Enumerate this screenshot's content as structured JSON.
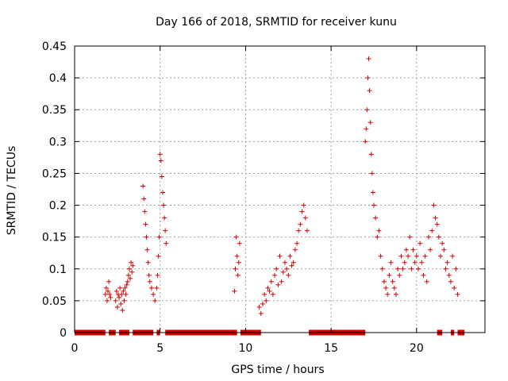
{
  "chart_data": {
    "type": "scatter",
    "title": "Day 166 of 2018, SRMTID for receiver kunu",
    "xlabel": "GPS time / hours",
    "ylabel": "SRMTID / TECUs",
    "xlim": [
      0,
      24
    ],
    "ylim": [
      0,
      0.45
    ],
    "xticks": [
      0,
      5,
      10,
      15,
      20
    ],
    "xtick_labels": [
      "0",
      "5",
      "10",
      "15",
      "20"
    ],
    "yticks": [
      0,
      0.05,
      0.1,
      0.15,
      0.2,
      0.25,
      0.3,
      0.35,
      0.4,
      0.45
    ],
    "ytick_labels": [
      "0",
      "0.05",
      "0.1",
      "0.15",
      "0.2",
      "0.25",
      "0.3",
      "0.35",
      "0.4",
      "0.45"
    ],
    "grid": true,
    "marker": "+",
    "color": "#d00000",
    "zero_segments": [
      [
        0.0,
        1.8
      ],
      [
        2.0,
        2.4
      ],
      [
        2.6,
        3.2
      ],
      [
        3.4,
        4.6
      ],
      [
        4.8,
        5.0
      ],
      [
        5.3,
        9.5
      ],
      [
        9.7,
        10.9
      ],
      [
        13.7,
        17.0
      ],
      [
        21.2,
        21.5
      ],
      [
        22.0,
        22.2
      ],
      [
        22.4,
        22.8
      ]
    ],
    "series": [
      {
        "name": "SRMTID",
        "x": [
          1.8,
          1.85,
          1.9,
          1.95,
          2.0,
          2.05,
          2.1,
          2.4,
          2.45,
          2.5,
          2.55,
          2.6,
          2.65,
          2.7,
          2.75,
          2.8,
          2.85,
          2.9,
          2.95,
          3.0,
          3.05,
          3.1,
          3.15,
          3.2,
          3.25,
          3.3,
          3.35,
          3.4,
          4.0,
          4.05,
          4.1,
          4.15,
          4.2,
          4.25,
          4.3,
          4.35,
          4.4,
          4.5,
          4.6,
          4.7,
          4.8,
          4.85,
          4.9,
          4.95,
          5.0,
          5.05,
          5.1,
          5.15,
          5.2,
          5.25,
          5.3,
          5.35,
          9.35,
          9.4,
          9.45,
          9.5,
          9.55,
          9.6,
          9.65,
          10.8,
          10.9,
          11.0,
          11.1,
          11.2,
          11.3,
          11.4,
          11.5,
          11.6,
          11.7,
          11.8,
          11.9,
          12.0,
          12.1,
          12.2,
          12.3,
          12.4,
          12.5,
          12.6,
          12.7,
          12.8,
          12.9,
          13.0,
          13.1,
          13.2,
          13.3,
          13.4,
          13.5,
          13.6,
          17.0,
          17.05,
          17.1,
          17.15,
          17.2,
          17.25,
          17.3,
          17.35,
          17.4,
          17.45,
          17.5,
          17.6,
          17.7,
          17.8,
          17.9,
          18.0,
          18.1,
          18.2,
          18.3,
          18.4,
          18.5,
          18.6,
          18.7,
          18.8,
          18.9,
          19.0,
          19.1,
          19.2,
          19.3,
          19.4,
          19.5,
          19.6,
          19.7,
          19.8,
          19.9,
          20.0,
          20.1,
          20.2,
          20.3,
          20.4,
          20.5,
          20.6,
          20.7,
          20.8,
          20.9,
          21.0,
          21.1,
          21.2,
          21.3,
          21.4,
          21.5,
          21.6,
          21.7,
          21.8,
          21.9,
          22.0,
          22.1,
          22.2,
          22.3,
          22.4
        ],
        "y": [
          0.06,
          0.07,
          0.05,
          0.065,
          0.08,
          0.06,
          0.055,
          0.05,
          0.065,
          0.04,
          0.06,
          0.055,
          0.07,
          0.045,
          0.06,
          0.035,
          0.065,
          0.05,
          0.07,
          0.06,
          0.075,
          0.08,
          0.09,
          0.1,
          0.085,
          0.11,
          0.095,
          0.105,
          0.23,
          0.21,
          0.19,
          0.17,
          0.15,
          0.13,
          0.11,
          0.09,
          0.08,
          0.07,
          0.06,
          0.05,
          0.07,
          0.09,
          0.12,
          0.15,
          0.28,
          0.27,
          0.245,
          0.22,
          0.2,
          0.18,
          0.16,
          0.14,
          0.065,
          0.1,
          0.15,
          0.12,
          0.09,
          0.11,
          0.14,
          0.04,
          0.03,
          0.045,
          0.06,
          0.05,
          0.07,
          0.065,
          0.08,
          0.06,
          0.09,
          0.1,
          0.075,
          0.12,
          0.08,
          0.095,
          0.11,
          0.1,
          0.09,
          0.12,
          0.105,
          0.11,
          0.13,
          0.14,
          0.16,
          0.17,
          0.19,
          0.2,
          0.18,
          0.16,
          0.3,
          0.32,
          0.35,
          0.4,
          0.43,
          0.38,
          0.33,
          0.28,
          0.25,
          0.22,
          0.2,
          0.18,
          0.15,
          0.16,
          0.12,
          0.1,
          0.08,
          0.07,
          0.06,
          0.09,
          0.11,
          0.08,
          0.07,
          0.06,
          0.1,
          0.09,
          0.12,
          0.1,
          0.11,
          0.13,
          0.12,
          0.15,
          0.1,
          0.13,
          0.11,
          0.12,
          0.1,
          0.14,
          0.11,
          0.09,
          0.12,
          0.08,
          0.15,
          0.13,
          0.16,
          0.2,
          0.18,
          0.17,
          0.15,
          0.12,
          0.14,
          0.13,
          0.1,
          0.11,
          0.09,
          0.08,
          0.12,
          0.07,
          0.1,
          0.06
        ]
      }
    ]
  }
}
